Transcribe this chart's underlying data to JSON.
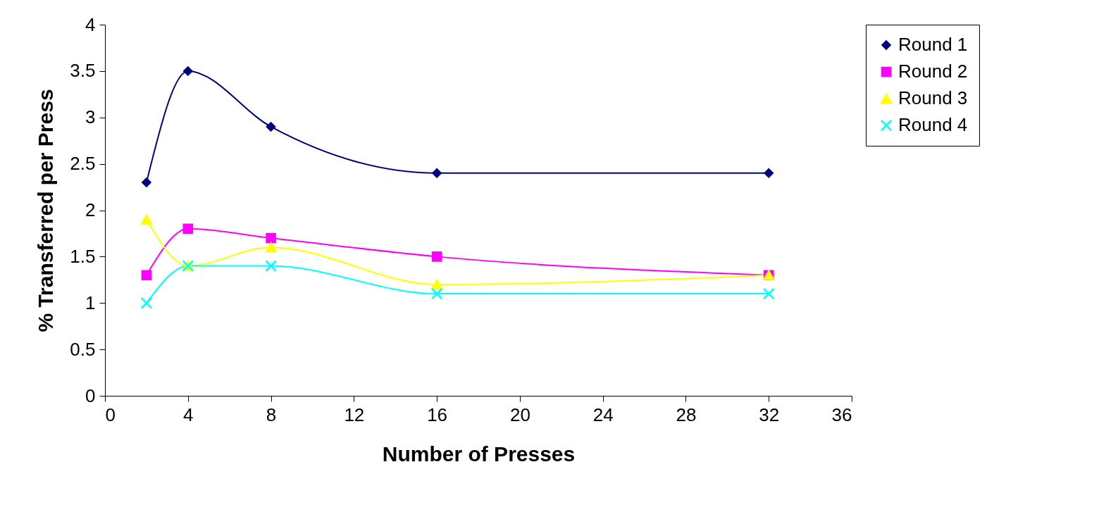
{
  "chart_data": {
    "type": "line",
    "xlabel": "Number of Presses",
    "ylabel": "% Transferred per Press",
    "x": [
      2,
      4,
      8,
      16,
      32
    ],
    "series": [
      {
        "name": "Round 1",
        "color": "#000080",
        "marker": "diamond",
        "values": [
          2.3,
          3.5,
          2.9,
          2.4,
          2.4
        ]
      },
      {
        "name": "Round 2",
        "color": "#ff00ff",
        "marker": "square",
        "values": [
          1.3,
          1.8,
          1.7,
          1.5,
          1.3
        ]
      },
      {
        "name": "Round 3",
        "color": "#ffff00",
        "marker": "triangle",
        "values": [
          1.9,
          1.4,
          1.6,
          1.2,
          1.3
        ]
      },
      {
        "name": "Round 4",
        "color": "#00ffff",
        "marker": "cross",
        "values": [
          1.0,
          1.4,
          1.4,
          1.1,
          1.1
        ]
      }
    ],
    "xlim": [
      0,
      36
    ],
    "xticks": [
      0,
      4,
      8,
      12,
      16,
      20,
      24,
      28,
      32,
      36
    ],
    "ylim": [
      0,
      4
    ],
    "yticks": [
      0,
      0.5,
      1,
      1.5,
      2,
      2.5,
      3,
      3.5,
      4
    ],
    "legend": "right",
    "grid": false
  }
}
